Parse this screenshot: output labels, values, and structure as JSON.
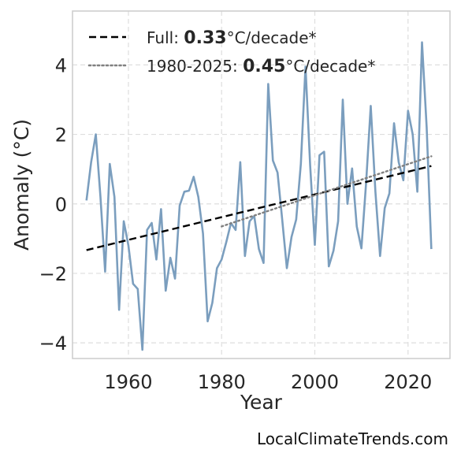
{
  "chart_data": {
    "type": "line",
    "xlabel": "Year",
    "ylabel": "Anomaly (°C)",
    "xlim": [
      1948,
      2029
    ],
    "ylim": [
      -4.45,
      5.55
    ],
    "xticks": [
      1960,
      1980,
      2000,
      2020
    ],
    "yticks": [
      -4,
      -2,
      0,
      2,
      4
    ],
    "ytick_labels": [
      "−4",
      "−2",
      "0",
      "2",
      "4"
    ],
    "grid": true,
    "legend_placement": "top-left",
    "series": [
      {
        "style": "solid",
        "color": "#7b9ebe",
        "x": [
          1951,
          1952,
          1953,
          1954,
          1955,
          1956,
          1957,
          1958,
          1959,
          1960,
          1961,
          1962,
          1963,
          1964,
          1965,
          1966,
          1967,
          1968,
          1969,
          1970,
          1971,
          1972,
          1973,
          1974,
          1975,
          1976,
          1977,
          1978,
          1979,
          1980,
          1981,
          1982,
          1983,
          1984,
          1985,
          1986,
          1987,
          1988,
          1989,
          1990,
          1991,
          1992,
          1993,
          1994,
          1995,
          1996,
          1997,
          1998,
          1999,
          2000,
          2001,
          2002,
          2003,
          2004,
          2005,
          2006,
          2007,
          2008,
          2009,
          2010,
          2011,
          2012,
          2013,
          2014,
          2015,
          2016,
          2017,
          2018,
          2019,
          2020,
          2021,
          2022,
          2023,
          2024,
          2025
        ],
        "y": [
          0.1,
          1.2,
          2.0,
          0.2,
          -1.95,
          1.15,
          0.2,
          -3.05,
          -0.5,
          -1.2,
          -2.3,
          -2.45,
          -4.2,
          -0.75,
          -0.55,
          -1.6,
          -0.15,
          -2.5,
          -1.55,
          -2.15,
          -0.05,
          0.35,
          0.38,
          0.78,
          0.2,
          -0.85,
          -3.38,
          -2.85,
          -1.85,
          -1.6,
          -1.1,
          -0.55,
          -0.75,
          1.2,
          -1.5,
          -0.5,
          -0.35,
          -1.3,
          -1.7,
          3.45,
          1.25,
          0.9,
          -0.45,
          -1.85,
          -0.95,
          -0.45,
          1.15,
          3.95,
          1.1,
          -1.18,
          1.4,
          1.5,
          -1.8,
          -1.35,
          -0.5,
          3.0,
          0.0,
          1.02,
          -0.65,
          -1.28,
          0.6,
          2.82,
          0.35,
          -1.5,
          -0.12,
          0.3,
          2.32,
          1.2,
          0.68,
          2.68,
          2.0,
          0.35,
          4.65,
          2.2,
          -1.3
        ]
      },
      {
        "name": "Full",
        "style": "dashed",
        "color": "#000000",
        "x": [
          1951,
          2025
        ],
        "y": [
          -1.33,
          1.09
        ]
      },
      {
        "name": "1980-2025",
        "style": "dotted",
        "color": "#808080",
        "x": [
          1980,
          2025
        ],
        "y": [
          -0.65,
          1.37
        ]
      }
    ],
    "legend": [
      {
        "prefix": "Full: ",
        "value": "0.33",
        "suffix": "°C/decade*",
        "style": "dashed",
        "color": "#000000"
      },
      {
        "prefix": "1980-2025: ",
        "value": "0.45",
        "suffix": "°C/decade*",
        "style": "dotted",
        "color": "#808080"
      }
    ]
  },
  "watermark": "LocalClimateTrends.com"
}
